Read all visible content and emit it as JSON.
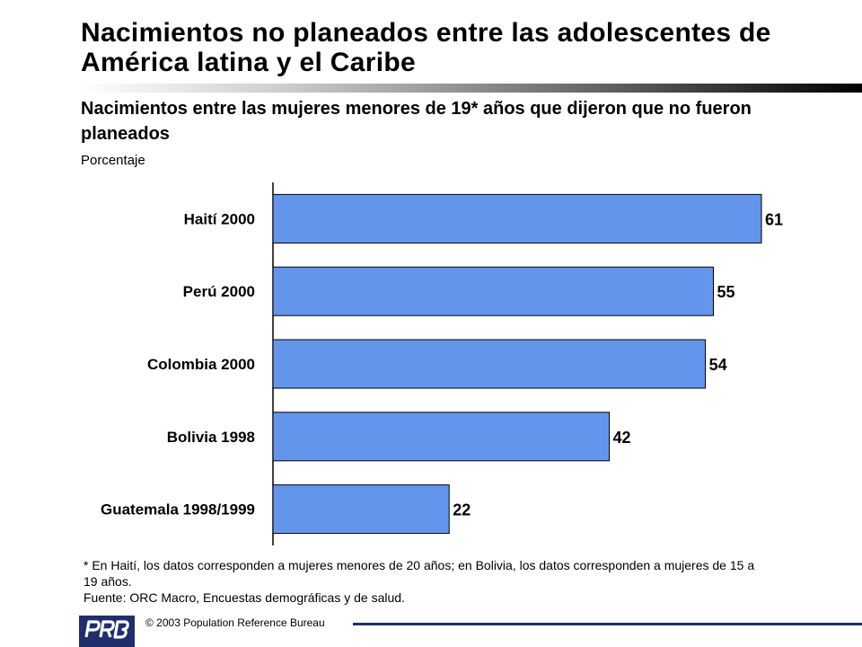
{
  "header": {
    "title": "Nacimientos no planeados entre las adolescentes de América latina y el Caribe",
    "subtitle": "Nacimientos entre las mujeres menores de 19* años que dijeron que no fueron planeados",
    "unit": "Porcentaje"
  },
  "chart_data": {
    "type": "bar",
    "orientation": "horizontal",
    "categories": [
      "Haití 2000",
      "Perú 2000",
      "Colombia 2000",
      "Bolivia 1998",
      "Guatemala 1998/1999"
    ],
    "values": [
      61,
      55,
      54,
      42,
      22
    ],
    "data_labels": [
      "61",
      "55",
      "54",
      "42",
      "22"
    ],
    "title": "Nacimientos entre las mujeres menores de 19* años que dijeron que no fueron planeados",
    "xlabel": "Porcentaje",
    "ylabel": "",
    "xlim": [
      0,
      61
    ],
    "grid": false,
    "legend": "none",
    "bar_color": "#6495ED",
    "bar_stroke": "#000000"
  },
  "footnotes": {
    "note": "* En Haití, los datos corresponden a mujeres menores de 20 años; en Bolivia, los datos corresponden a mujeres de 15 a 19 años.",
    "source": "Fuente: ORC Macro, Encuestas demográficas y de salud."
  },
  "footer": {
    "logo_text": "PRB",
    "copyright": "© 2003 Population Reference Bureau",
    "accent_color": "#1f2f6b"
  }
}
